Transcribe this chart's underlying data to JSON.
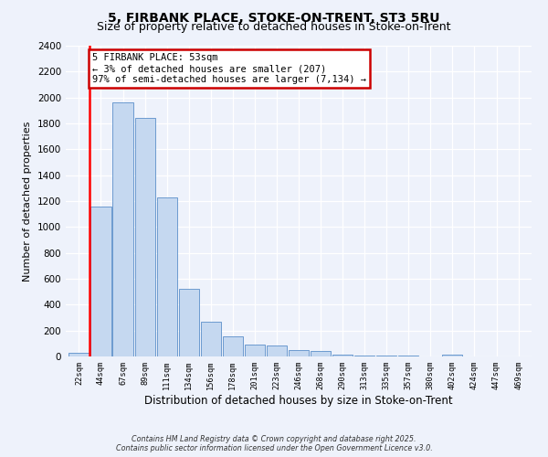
{
  "title": "5, FIRBANK PLACE, STOKE-ON-TRENT, ST3 5RU",
  "subtitle": "Size of property relative to detached houses in Stoke-on-Trent",
  "xlabel": "Distribution of detached houses by size in Stoke-on-Trent",
  "ylabel": "Number of detached properties",
  "bin_labels": [
    "22sqm",
    "44sqm",
    "67sqm",
    "89sqm",
    "111sqm",
    "134sqm",
    "156sqm",
    "178sqm",
    "201sqm",
    "223sqm",
    "246sqm",
    "268sqm",
    "290sqm",
    "313sqm",
    "335sqm",
    "357sqm",
    "380sqm",
    "402sqm",
    "424sqm",
    "447sqm",
    "469sqm"
  ],
  "bar_heights": [
    25,
    1160,
    1960,
    1840,
    1230,
    520,
    270,
    155,
    90,
    85,
    50,
    40,
    15,
    10,
    8,
    5,
    3,
    12,
    2,
    1,
    2
  ],
  "bar_color": "#c5d8f0",
  "bar_edge_color": "#5b8fc9",
  "red_line_bin": 1,
  "annotation_title": "5 FIRBANK PLACE: 53sqm",
  "annotation_line1": "← 3% of detached houses are smaller (207)",
  "annotation_line2": "97% of semi-detached houses are larger (7,134) →",
  "annotation_box_color": "#ffffff",
  "annotation_box_edge": "#cc0000",
  "footer_line1": "Contains HM Land Registry data © Crown copyright and database right 2025.",
  "footer_line2": "Contains public sector information licensed under the Open Government Licence v3.0.",
  "ylim": [
    0,
    2400
  ],
  "yticks": [
    0,
    200,
    400,
    600,
    800,
    1000,
    1200,
    1400,
    1600,
    1800,
    2000,
    2200,
    2400
  ],
  "background_color": "#eef2fb",
  "grid_color": "#ffffff",
  "title_fontsize": 10,
  "subtitle_fontsize": 9
}
